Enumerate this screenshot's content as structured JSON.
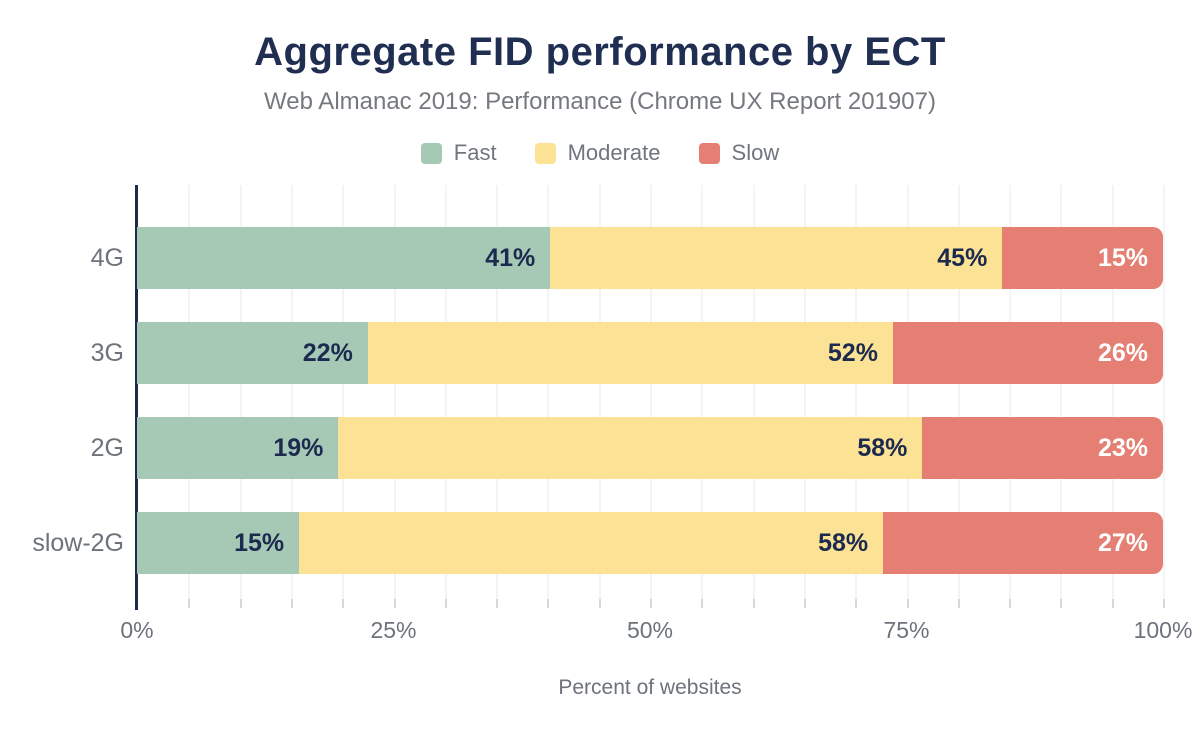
{
  "chart_data": {
    "type": "bar",
    "orientation": "horizontal",
    "stacked": true,
    "title": "Aggregate FID performance by ECT",
    "subtitle": "Web Almanac 2019: Performance (Chrome UX Report 201907)",
    "xlabel": "Percent of websites",
    "categories": [
      "4G",
      "3G",
      "2G",
      "slow-2G"
    ],
    "series": [
      {
        "name": "Fast",
        "color": "#a6c9b6",
        "label_color": "#1b2a4e",
        "values": [
          41,
          22,
          19,
          15
        ]
      },
      {
        "name": "Moderate",
        "color": "#fce294",
        "label_color": "#1b2a4e",
        "values": [
          45,
          52,
          58,
          58
        ]
      },
      {
        "name": "Slow",
        "color": "#e57e73",
        "label_color": "#ffffff",
        "values": [
          15,
          26,
          23,
          27
        ]
      }
    ],
    "value_suffix": "%",
    "xlim": [
      0,
      100
    ],
    "x_ticks": [
      {
        "label": "0%",
        "pos": 0
      },
      {
        "label": "25%",
        "pos": 25
      },
      {
        "label": "50%",
        "pos": 50
      },
      {
        "label": "75%",
        "pos": 75
      },
      {
        "label": "100%",
        "pos": 100
      }
    ],
    "grid_step_percent": 5,
    "legend_position": "top",
    "colors": {
      "title": "#1f2e51",
      "axis_line": "#1c2b49",
      "gridline": "#f4f4f6",
      "tick": "#d6d9dc",
      "text_gray": "#6d737b"
    }
  }
}
